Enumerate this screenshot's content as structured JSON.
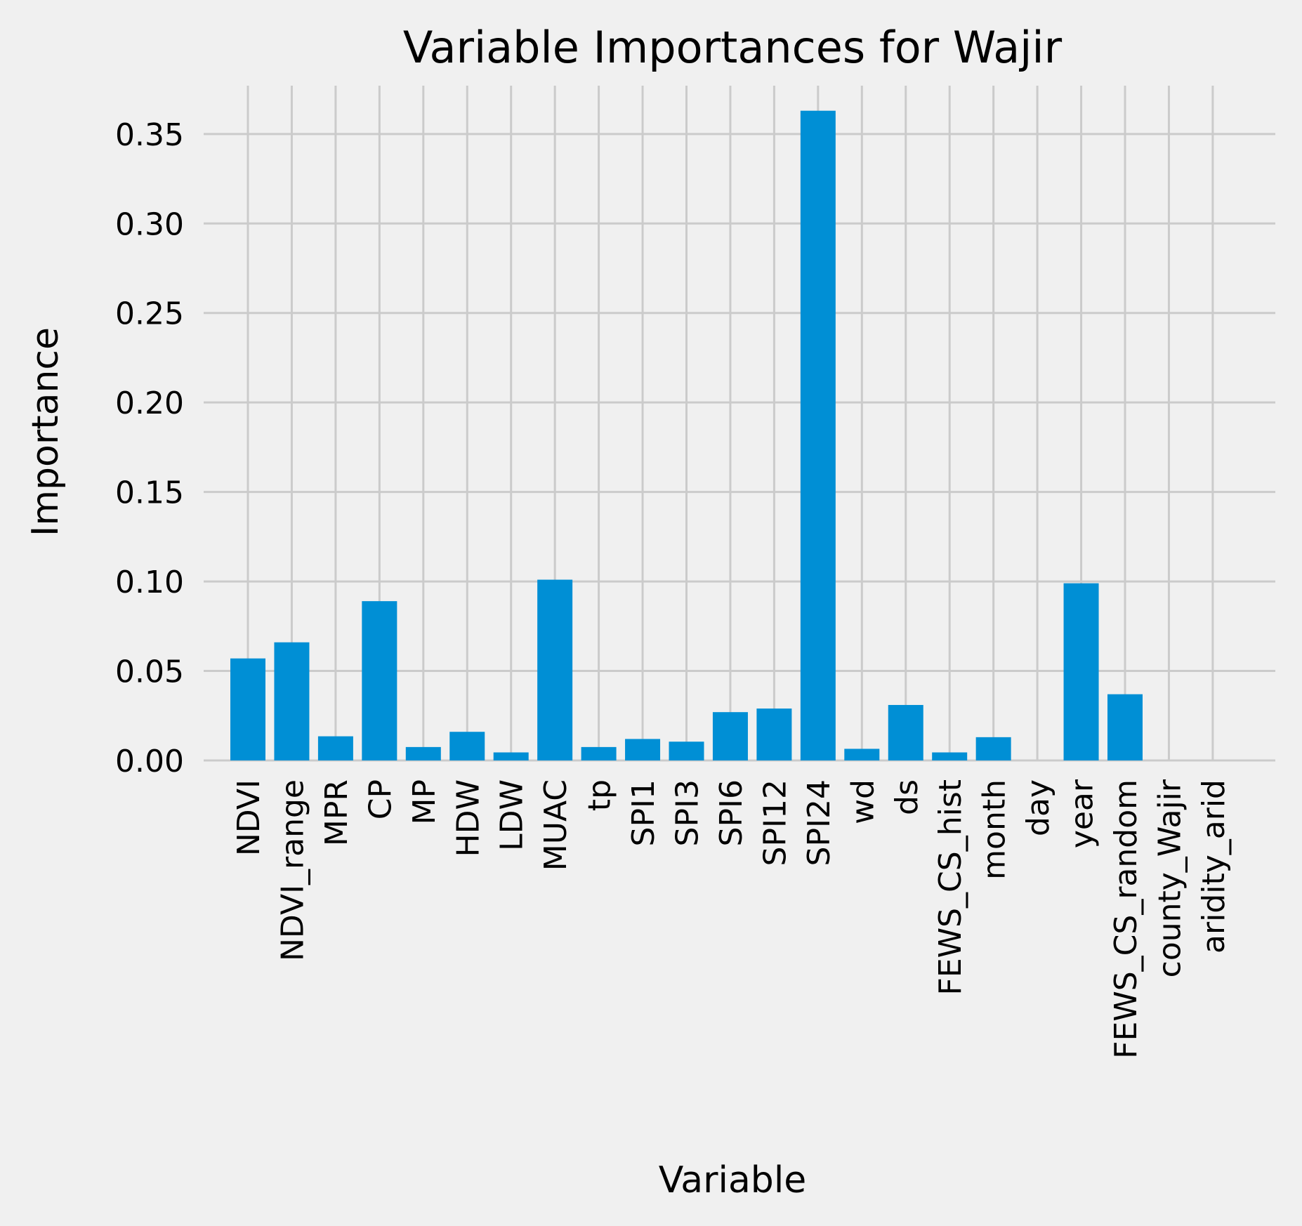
{
  "chart_data": {
    "type": "bar",
    "title": "Variable Importances for Wajir",
    "xlabel": "Variable",
    "ylabel": "Importance",
    "categories": [
      "NDVI",
      "NDVI_range",
      "MPR",
      "CP",
      "MP",
      "HDW",
      "LDW",
      "MUAC",
      "tp",
      "SPI1",
      "SPI3",
      "SPI6",
      "SPI12",
      "SPI24",
      "wd",
      "ds",
      "FEWS_CS_hist",
      "month",
      "day",
      "year",
      "FEWS_CS_random",
      "county_Wajir",
      "aridity_arid"
    ],
    "values": [
      0.057,
      0.066,
      0.0135,
      0.089,
      0.0075,
      0.016,
      0.0045,
      0.101,
      0.0075,
      0.012,
      0.0105,
      0.027,
      0.029,
      0.363,
      0.0065,
      0.031,
      0.0045,
      0.013,
      0.0,
      0.099,
      0.037,
      0.0,
      0.0
    ],
    "yticks": [
      "0.00",
      "0.05",
      "0.10",
      "0.15",
      "0.20",
      "0.25",
      "0.30",
      "0.35"
    ],
    "ylim": [
      0,
      0.377
    ],
    "grid": true,
    "legend": "none",
    "colors": {
      "bar": "#008fd5",
      "background": "#f0f0f0",
      "grid": "#cbcbcb",
      "text": "#000000"
    }
  }
}
